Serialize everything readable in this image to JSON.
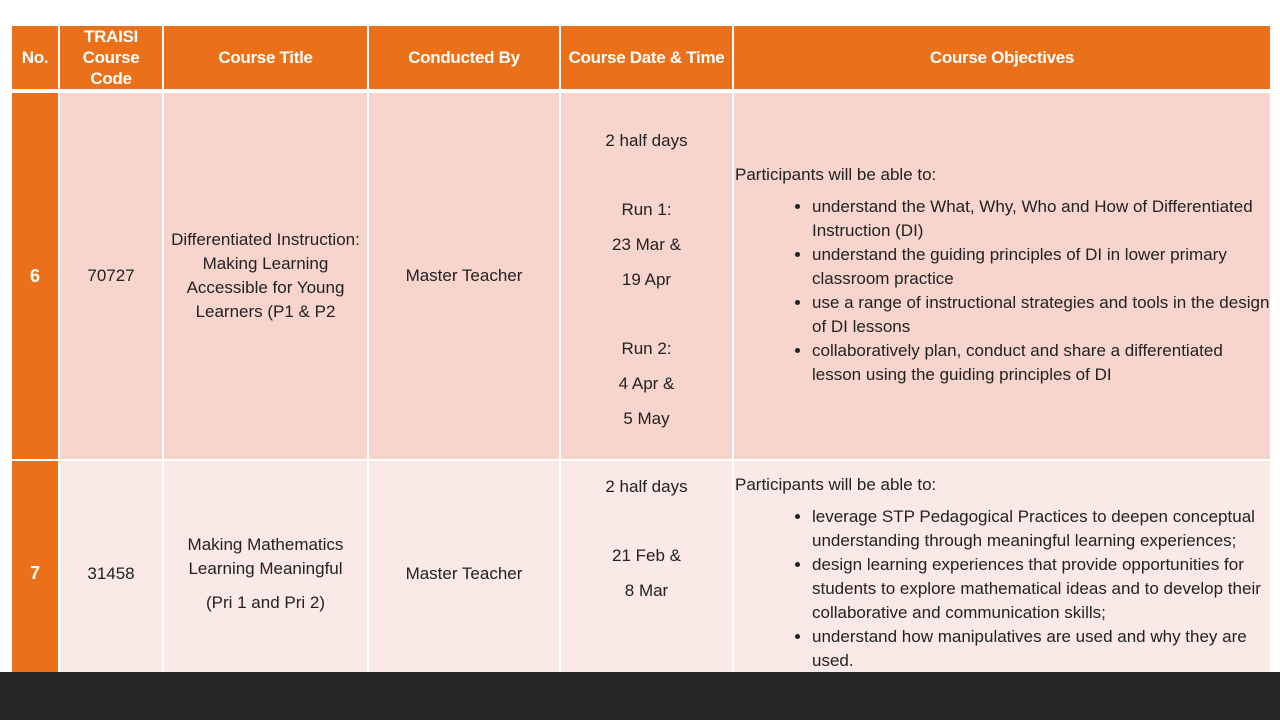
{
  "headers": [
    "No.",
    "TRAISI Course Code",
    "Course Title",
    "Conducted By",
    "Course Date & Time",
    "Course Objectives"
  ],
  "header_code_lines": [
    "TRAISI",
    "Course Code"
  ],
  "rows": [
    {
      "no": "6",
      "code": "70727",
      "title_lines": [
        "Differentiated Instruction:",
        "Making Learning",
        "Accessible for Young",
        "Learners (P1 & P2"
      ],
      "conducted_by": "Master Teacher",
      "date_lines": [
        "2 half days",
        "",
        "Run 1:",
        "23 Mar &",
        "19 Apr",
        "",
        "Run 2:",
        "4 Apr &",
        "5 May"
      ],
      "objectives_intro": "Participants will be able to:",
      "objectives": [
        "understand the What, Why, Who and How of Differentiated Instruction (DI)",
        "understand the guiding principles of DI in lower primary classroom practice",
        "use a range of instructional strategies and tools in the design of DI lessons",
        "collaboratively plan, conduct and share a differentiated lesson using the guiding principles of DI"
      ]
    },
    {
      "no": "7",
      "code": "31458",
      "title_lines": [
        "Making Mathematics",
        "Learning Meaningful",
        "(Pri 1 and Pri 2)"
      ],
      "conducted_by": "Master Teacher",
      "date_lines": [
        "2 half days",
        "",
        "21 Feb &",
        "8 Mar"
      ],
      "objectives_intro": "Participants will be able to:",
      "objectives": [
        "leverage STP Pedagogical Practices to deepen conceptual understanding through meaningful learning experiences;",
        "design learning experiences that provide opportunities for students to explore mathematical ideas and to develop their collaborative and communication skills;",
        "understand how manipulatives are used and why they are used."
      ]
    }
  ],
  "colors": {
    "header": "#ea7119",
    "row6": "#f7d5cd",
    "row7": "#fae9e6",
    "footer": "#262626"
  }
}
